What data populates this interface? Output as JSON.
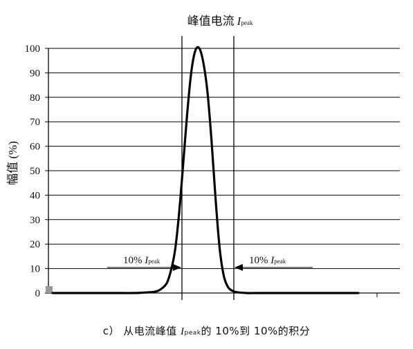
{
  "chart_data": {
    "type": "line",
    "title": {
      "prefix": "峰值电流",
      "sym": "I",
      "sub": "peak"
    },
    "ylabel": "幅值 (%)",
    "ylim": [
      0,
      100
    ],
    "yticks": [
      "0",
      "10",
      "20",
      "30",
      "40",
      "50",
      "60",
      "70",
      "80",
      "90",
      "100"
    ],
    "grid": true,
    "series": [
      {
        "x": [
          0,
          10,
          20,
          30,
          40,
          45,
          50,
          53,
          56,
          58,
          60,
          62,
          64,
          66,
          68,
          70,
          72,
          74,
          76,
          78,
          80,
          82,
          84,
          86,
          88,
          90,
          95,
          100,
          110,
          120,
          135,
          150
        ],
        "y": [
          0,
          0,
          0,
          0,
          0,
          0.2,
          0.5,
          1.5,
          4,
          9,
          17,
          32,
          52,
          73,
          90,
          99,
          100,
          94,
          82,
          62,
          38,
          18,
          7,
          2.5,
          1,
          0.4,
          0,
          0,
          0,
          0,
          0,
          0
        ]
      }
    ],
    "annotations": [
      {
        "text": "10% ",
        "sym": "I",
        "sub": "peak",
        "side": "left"
      },
      {
        "text": "10% ",
        "sym": "I",
        "sub": "peak",
        "side": "right"
      }
    ]
  },
  "caption": {
    "prefix": "c） 从电流峰值 ",
    "sym": "I",
    "sub": "peak",
    "suffix": "的 10%到 10%的积分"
  }
}
